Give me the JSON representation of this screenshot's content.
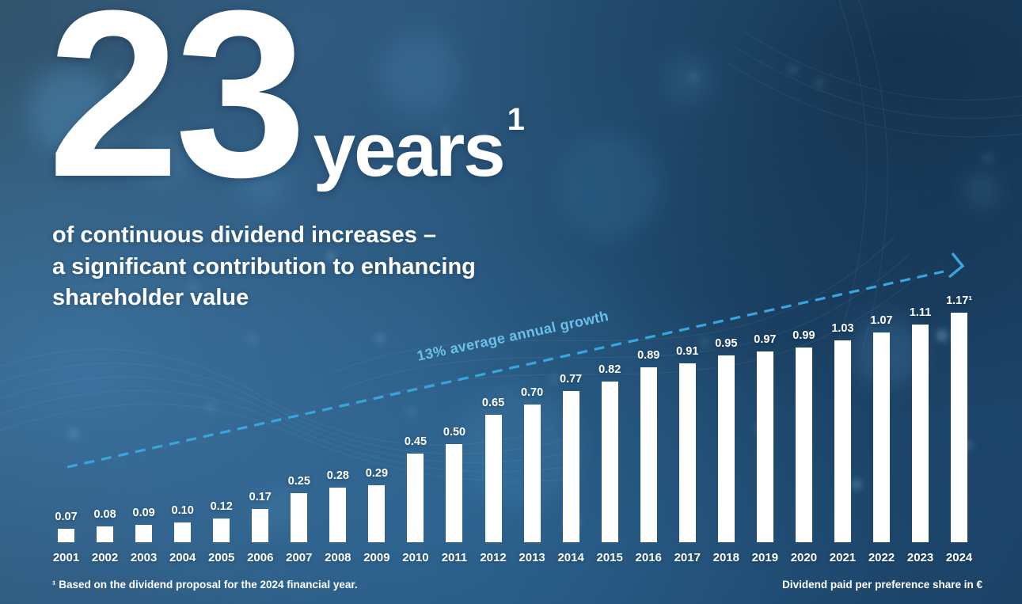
{
  "headline": {
    "number": "23",
    "unit": "years",
    "superscript": "1"
  },
  "subtitle_lines": [
    "of continuous dividend increases –",
    "a significant contribution to enhancing",
    "shareholder value"
  ],
  "growth_annotation": "13% average annual growth",
  "footnote": "¹ Based on the dividend proposal for the 2024 financial year.",
  "axis_note": "Dividend paid per preference share in €",
  "colors": {
    "bar": "#ffffff",
    "accent_line": "#3aa5dc",
    "annotation_text": "#6cc0e8",
    "text": "#ffffff",
    "background_base": "#27587f"
  },
  "chart_data": {
    "type": "bar",
    "title": "23 years of continuous dividend increases – a significant contribution to enhancing shareholder value",
    "categories": [
      "2001",
      "2002",
      "2003",
      "2004",
      "2005",
      "2006",
      "2007",
      "2008",
      "2009",
      "2010",
      "2011",
      "2012",
      "2013",
      "2014",
      "2015",
      "2016",
      "2017",
      "2018",
      "2019",
      "2020",
      "2021",
      "2022",
      "2023",
      "2024"
    ],
    "values": [
      0.07,
      0.08,
      0.09,
      0.1,
      0.12,
      0.17,
      0.25,
      0.28,
      0.29,
      0.45,
      0.5,
      0.65,
      0.7,
      0.77,
      0.82,
      0.89,
      0.91,
      0.95,
      0.97,
      0.99,
      1.03,
      1.07,
      1.11,
      1.17
    ],
    "bar_labels": [
      "0.07",
      "0.08",
      "0.09",
      "0.10",
      "0.12",
      "0.17",
      "0.25",
      "0.28",
      "0.29",
      "0.45",
      "0.50",
      "0.65",
      "0.70",
      "0.77",
      "0.82",
      "0.89",
      "0.91",
      "0.95",
      "0.97",
      "0.99",
      "1.03",
      "1.07",
      "1.11",
      "1.17¹"
    ],
    "xlabel": "",
    "ylabel": "Dividend paid per preference share in €",
    "ylim": [
      0,
      1.25
    ],
    "grid": false,
    "legend": "none",
    "annotation": "13% average annual growth",
    "annotation_style": "dashed rising arrow"
  }
}
